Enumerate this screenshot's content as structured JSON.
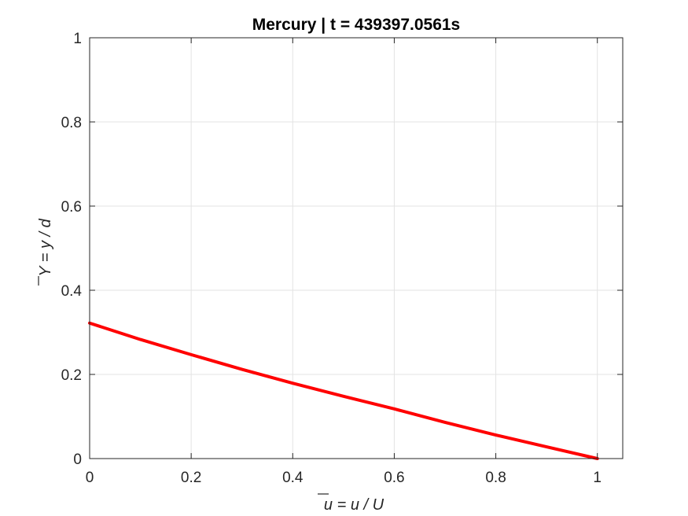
{
  "chart_data": {
    "type": "line",
    "title": "Mercury | t = 439397.0561s",
    "xlabel": "u = u / U",
    "ylabel": "Y = y / d",
    "xlim": [
      0,
      1.05
    ],
    "ylim": [
      0,
      1
    ],
    "xticks": [
      0,
      0.2,
      0.4,
      0.6,
      0.8,
      1
    ],
    "yticks": [
      0,
      0.2,
      0.4,
      0.6,
      0.8,
      1
    ],
    "xtick_labels": [
      "0",
      "0.2",
      "0.4",
      "0.6",
      "0.8",
      "1"
    ],
    "ytick_labels": [
      "0",
      "0.2",
      "0.4",
      "0.6",
      "0.8",
      "1"
    ],
    "grid": true,
    "series": [
      {
        "color": "#ff0000",
        "x": [
          0,
          0.1,
          0.2,
          0.3,
          0.4,
          0.5,
          0.6,
          0.7,
          0.8,
          0.9,
          1.0
        ],
        "y": [
          0.322,
          0.283,
          0.247,
          0.212,
          0.179,
          0.148,
          0.118,
          0.086,
          0.056,
          0.028,
          0.0
        ]
      }
    ]
  }
}
